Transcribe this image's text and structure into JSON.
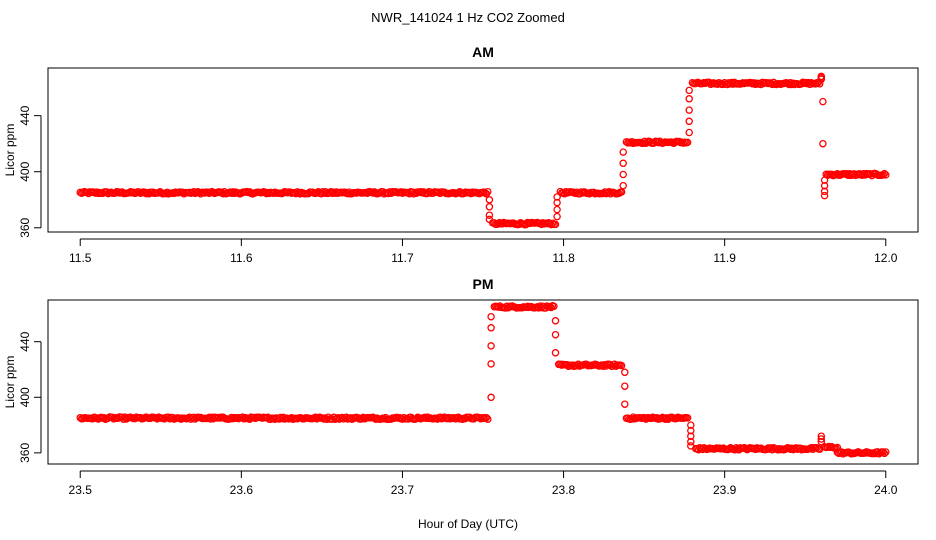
{
  "figure_title": "NWR_141024  1 Hz CO2 Zoomed",
  "shared_xlabel": "Hour of Day (UTC)",
  "point_color": "#ff0000",
  "chart_data": [
    {
      "type": "scatter",
      "title": "AM",
      "xlabel": "",
      "ylabel": "Licor ppm",
      "xlim": [
        11.5,
        12.0
      ],
      "ylim": [
        357,
        474
      ],
      "xticks": [
        11.5,
        11.6,
        11.7,
        11.8,
        11.9,
        12.0
      ],
      "xtick_labels": [
        "11.5",
        "11.6",
        "11.7",
        "11.8",
        "11.9",
        "12.0"
      ],
      "yticks": [
        360,
        400,
        440
      ],
      "ytick_labels": [
        "360",
        "400",
        "440"
      ],
      "marker": "open-circle",
      "grid": false,
      "segments": [
        {
          "x_start": 11.5,
          "x_end": 11.753,
          "y": 385
        },
        {
          "x_start": 11.756,
          "x_end": 11.795,
          "y": 363
        },
        {
          "x_start": 11.798,
          "x_end": 11.836,
          "y": 385
        },
        {
          "x_start": 11.839,
          "x_end": 11.877,
          "y": 421
        },
        {
          "x_start": 11.88,
          "x_end": 11.959,
          "y": 463
        },
        {
          "x_start": 11.963,
          "x_end": 12.0,
          "y": 398
        }
      ],
      "transitions": [
        {
          "x": 11.754,
          "y": [
            380,
            375,
            369,
            366
          ]
        },
        {
          "x": 11.796,
          "y": [
            368,
            373,
            378,
            382
          ]
        },
        {
          "x": 11.837,
          "y": [
            390,
            398,
            406,
            414
          ]
        },
        {
          "x": 11.878,
          "y": [
            428,
            436,
            444,
            452,
            458
          ]
        },
        {
          "x": 11.96,
          "y": [
            466,
            467,
            468
          ]
        },
        {
          "x": 11.961,
          "y": [
            450,
            420
          ]
        },
        {
          "x": 11.962,
          "y": [
            383,
            386,
            390,
            394
          ]
        }
      ]
    },
    {
      "type": "scatter",
      "title": "PM",
      "xlabel": "",
      "ylabel": "Licor ppm",
      "xlim": [
        23.5,
        24.0
      ],
      "ylim": [
        352,
        470
      ],
      "xticks": [
        23.5,
        23.6,
        23.7,
        23.8,
        23.9,
        24.0
      ],
      "xtick_labels": [
        "23.5",
        "23.6",
        "23.7",
        "23.8",
        "23.9",
        "24.0"
      ],
      "yticks": [
        360,
        400,
        440
      ],
      "ytick_labels": [
        "360",
        "400",
        "440"
      ],
      "marker": "open-circle",
      "grid": false,
      "segments": [
        {
          "x_start": 23.5,
          "x_end": 23.753,
          "y": 385
        },
        {
          "x_start": 23.757,
          "x_end": 23.794,
          "y": 465
        },
        {
          "x_start": 23.797,
          "x_end": 23.836,
          "y": 423
        },
        {
          "x_start": 23.839,
          "x_end": 23.877,
          "y": 385
        },
        {
          "x_start": 23.882,
          "x_end": 23.959,
          "y": 363
        },
        {
          "x_start": 23.962,
          "x_end": 23.97,
          "y": 364
        },
        {
          "x_start": 23.97,
          "x_end": 24.0,
          "y": 360
        }
      ],
      "transitions": [
        {
          "x": 23.755,
          "y": [
            400,
            424,
            437,
            450,
            458
          ]
        },
        {
          "x": 23.795,
          "y": [
            455,
            445,
            432
          ]
        },
        {
          "x": 23.838,
          "y": [
            418,
            408,
            395
          ]
        },
        {
          "x": 23.879,
          "y": [
            380,
            376,
            372,
            368,
            365
          ]
        },
        {
          "x": 23.96,
          "y": [
            370,
            372,
            368
          ]
        }
      ]
    }
  ]
}
